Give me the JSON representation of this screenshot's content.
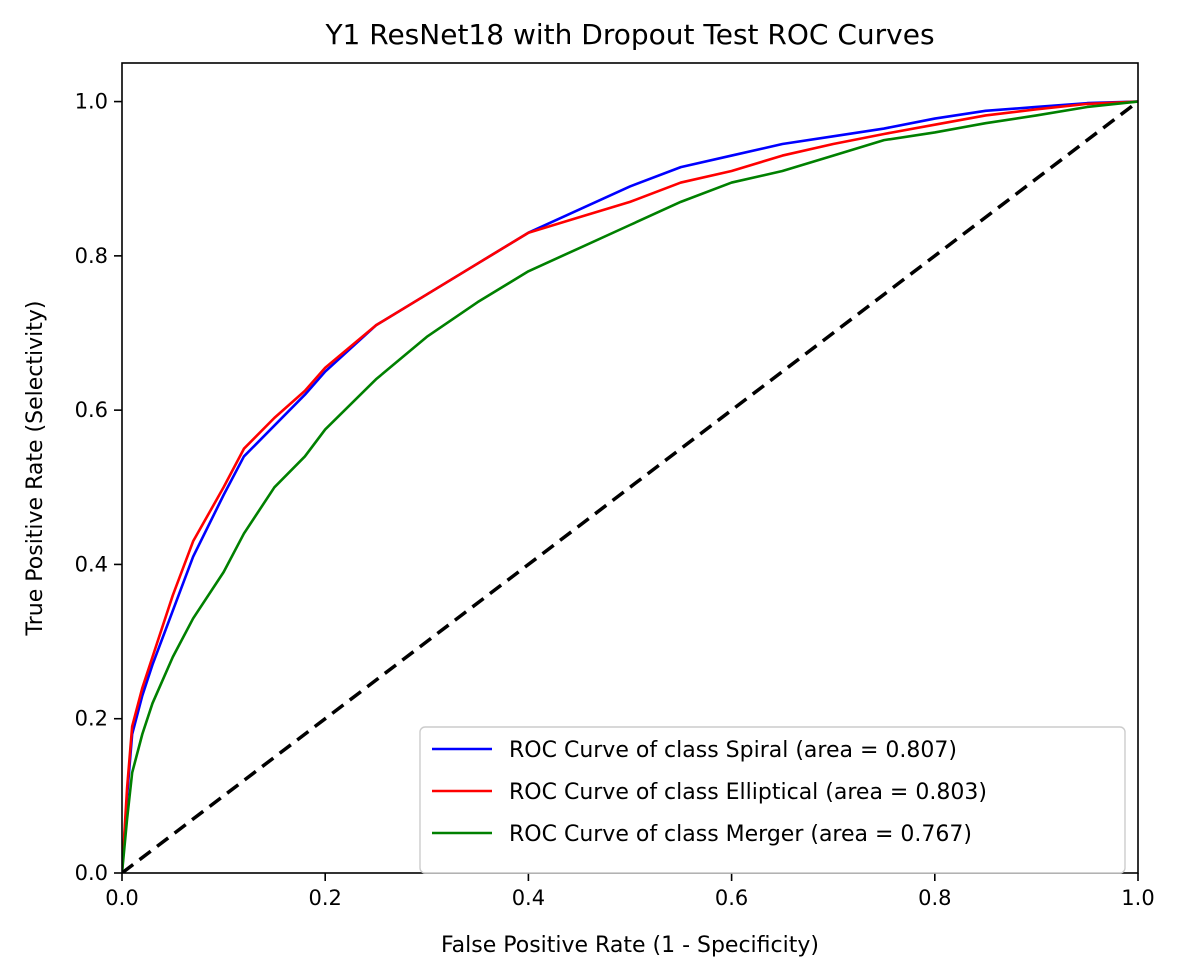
{
  "chart_data": {
    "type": "line",
    "title": "Y1 ResNet18 with Dropout Test ROC Curves",
    "xlabel": "False Positive Rate (1 - Specificity)",
    "ylabel": "True Positive Rate (Selectivity)",
    "xlim": [
      0.0,
      1.0
    ],
    "ylim": [
      0.0,
      1.05
    ],
    "xticks": [
      "0.0",
      "0.2",
      "0.4",
      "0.6",
      "0.8",
      "1.0"
    ],
    "yticks": [
      "0.0",
      "0.2",
      "0.4",
      "0.6",
      "0.8",
      "1.0"
    ],
    "grid": false,
    "legend_position": "lower-right",
    "series": [
      {
        "name": "ROC Curve of class Spiral (area = 0.807)",
        "color": "#0000ff",
        "x": [
          0,
          0.005,
          0.01,
          0.02,
          0.03,
          0.05,
          0.07,
          0.1,
          0.12,
          0.15,
          0.18,
          0.2,
          0.25,
          0.3,
          0.35,
          0.4,
          0.45,
          0.5,
          0.55,
          0.6,
          0.65,
          0.7,
          0.75,
          0.8,
          0.85,
          0.9,
          0.95,
          1.0
        ],
        "y": [
          0,
          0.1,
          0.18,
          0.23,
          0.27,
          0.34,
          0.41,
          0.49,
          0.54,
          0.58,
          0.62,
          0.65,
          0.71,
          0.75,
          0.79,
          0.83,
          0.86,
          0.89,
          0.915,
          0.93,
          0.945,
          0.955,
          0.965,
          0.978,
          0.988,
          0.993,
          0.998,
          1.0
        ]
      },
      {
        "name": "ROC Curve of class Elliptical (area = 0.803)",
        "color": "#ff0000",
        "x": [
          0,
          0.005,
          0.01,
          0.02,
          0.03,
          0.05,
          0.07,
          0.1,
          0.12,
          0.15,
          0.18,
          0.2,
          0.25,
          0.3,
          0.35,
          0.4,
          0.45,
          0.5,
          0.55,
          0.6,
          0.65,
          0.7,
          0.75,
          0.8,
          0.85,
          0.9,
          0.95,
          1.0
        ],
        "y": [
          0,
          0.11,
          0.19,
          0.24,
          0.28,
          0.36,
          0.43,
          0.5,
          0.55,
          0.59,
          0.625,
          0.655,
          0.71,
          0.75,
          0.79,
          0.83,
          0.85,
          0.87,
          0.895,
          0.91,
          0.93,
          0.945,
          0.958,
          0.97,
          0.982,
          0.99,
          0.997,
          1.0
        ]
      },
      {
        "name": "ROC Curve of class Merger (area = 0.767)",
        "color": "#008000",
        "x": [
          0,
          0.005,
          0.01,
          0.02,
          0.03,
          0.05,
          0.07,
          0.1,
          0.12,
          0.15,
          0.18,
          0.2,
          0.25,
          0.3,
          0.35,
          0.4,
          0.45,
          0.5,
          0.55,
          0.6,
          0.65,
          0.7,
          0.75,
          0.8,
          0.85,
          0.9,
          0.95,
          1.0
        ],
        "y": [
          0,
          0.07,
          0.13,
          0.18,
          0.22,
          0.28,
          0.33,
          0.39,
          0.44,
          0.5,
          0.54,
          0.575,
          0.64,
          0.695,
          0.74,
          0.78,
          0.81,
          0.84,
          0.87,
          0.895,
          0.91,
          0.93,
          0.95,
          0.96,
          0.972,
          0.982,
          0.993,
          1.0
        ]
      },
      {
        "name": "",
        "color": "#000000",
        "dashed": true,
        "x": [
          0,
          1
        ],
        "y": [
          0,
          1
        ]
      }
    ]
  }
}
